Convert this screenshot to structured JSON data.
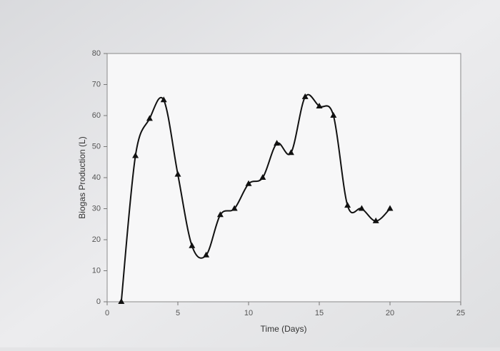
{
  "chart_data": {
    "type": "line",
    "x_label": "Time (Days)",
    "y_label": "Biogas Production (L)",
    "x": [
      1,
      2,
      3,
      4,
      5,
      6,
      7,
      8,
      9,
      10,
      11,
      12,
      13,
      14,
      15,
      16,
      17,
      18,
      19,
      20
    ],
    "values": [
      0,
      47,
      59,
      65,
      41,
      18,
      15,
      28,
      30,
      38,
      40,
      51,
      48,
      66,
      63,
      60,
      31,
      30,
      26,
      30
    ],
    "color": "#111111",
    "xlim": [
      0,
      25
    ],
    "xticks": [
      0,
      5,
      10,
      15,
      20,
      25
    ],
    "ylim": [
      0,
      80
    ],
    "yticks": [
      0,
      10,
      20,
      30,
      40,
      50,
      60,
      70,
      80
    ]
  }
}
